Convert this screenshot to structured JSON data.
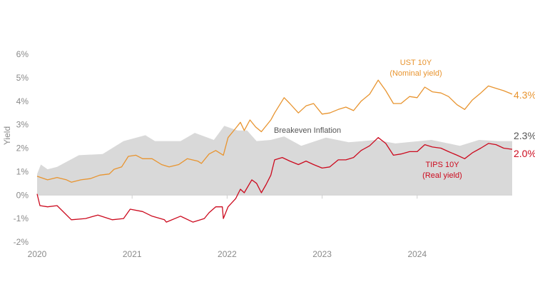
{
  "chart_data": {
    "type": "line",
    "title": "",
    "xlabel": "",
    "ylabel": "Yield",
    "xlim": [
      2020,
      2025
    ],
    "ylim": [
      -2,
      6
    ],
    "x_ticks": [
      2020,
      2021,
      2022,
      2023,
      2024
    ],
    "x_tick_labels": [
      "2020",
      "2021",
      "2022",
      "2023",
      "2024"
    ],
    "y_ticks": [
      -2,
      -1,
      0,
      1,
      2,
      3,
      4,
      5,
      6
    ],
    "y_tick_labels": [
      "-2%",
      "-1%",
      "0%",
      "1%",
      "2%",
      "3%",
      "4%",
      "5%",
      "6%"
    ],
    "grid": false,
    "colors": {
      "nominal": "#e8942f",
      "real": "#cc0a1e",
      "breakeven": "#d9d9d9",
      "breakeven_text": "#555555",
      "axis_text": "#8a8a8a"
    },
    "series": [
      {
        "name": "UST 10Y (Nominal yield)",
        "key": "nominal",
        "label_line1": "UST 10Y",
        "label_line2": "(Nominal yield)",
        "end_label": "4.3%",
        "points": [
          [
            2020.0,
            0.8
          ],
          [
            2020.11,
            0.65
          ],
          [
            2020.21,
            0.75
          ],
          [
            2020.31,
            0.65
          ],
          [
            2020.36,
            0.55
          ],
          [
            2020.46,
            0.65
          ],
          [
            2020.56,
            0.7
          ],
          [
            2020.66,
            0.85
          ],
          [
            2020.76,
            0.9
          ],
          [
            2020.81,
            1.1
          ],
          [
            2020.89,
            1.2
          ],
          [
            2020.96,
            1.65
          ],
          [
            2021.04,
            1.7
          ],
          [
            2021.11,
            1.55
          ],
          [
            2021.21,
            1.55
          ],
          [
            2021.31,
            1.3
          ],
          [
            2021.39,
            1.2
          ],
          [
            2021.49,
            1.3
          ],
          [
            2021.58,
            1.55
          ],
          [
            2021.69,
            1.45
          ],
          [
            2021.73,
            1.35
          ],
          [
            2021.81,
            1.75
          ],
          [
            2021.88,
            1.9
          ],
          [
            2021.96,
            1.7
          ],
          [
            2022.01,
            2.45
          ],
          [
            2022.09,
            2.85
          ],
          [
            2022.14,
            3.1
          ],
          [
            2022.18,
            2.75
          ],
          [
            2022.24,
            3.2
          ],
          [
            2022.3,
            2.9
          ],
          [
            2022.36,
            2.7
          ],
          [
            2022.46,
            3.2
          ],
          [
            2022.5,
            3.5
          ],
          [
            2022.6,
            4.15
          ],
          [
            2022.66,
            3.9
          ],
          [
            2022.75,
            3.5
          ],
          [
            2022.83,
            3.8
          ],
          [
            2022.91,
            3.9
          ],
          [
            2023.0,
            3.45
          ],
          [
            2023.08,
            3.5
          ],
          [
            2023.17,
            3.65
          ],
          [
            2023.25,
            3.75
          ],
          [
            2023.33,
            3.6
          ],
          [
            2023.41,
            4.0
          ],
          [
            2023.5,
            4.3
          ],
          [
            2023.59,
            4.9
          ],
          [
            2023.67,
            4.45
          ],
          [
            2023.75,
            3.9
          ],
          [
            2023.83,
            3.9
          ],
          [
            2023.92,
            4.2
          ],
          [
            2024.0,
            4.15
          ],
          [
            2024.08,
            4.6
          ],
          [
            2024.16,
            4.4
          ],
          [
            2024.25,
            4.35
          ],
          [
            2024.33,
            4.2
          ],
          [
            2024.42,
            3.85
          ],
          [
            2024.5,
            3.65
          ],
          [
            2024.58,
            4.05
          ],
          [
            2024.67,
            4.35
          ],
          [
            2024.75,
            4.65
          ],
          [
            2024.83,
            4.55
          ],
          [
            2024.91,
            4.45
          ],
          [
            2025.0,
            4.3
          ]
        ]
      },
      {
        "name": "TIPS 10Y (Real yield)",
        "key": "real",
        "label_line1": "TIPS 10Y",
        "label_line2": "(Real yield)",
        "end_label": "2.0%",
        "points": [
          [
            2020.0,
            0.05
          ],
          [
            2020.03,
            -0.45
          ],
          [
            2020.11,
            -0.5
          ],
          [
            2020.21,
            -0.45
          ],
          [
            2020.36,
            -1.05
          ],
          [
            2020.51,
            -1.0
          ],
          [
            2020.64,
            -0.85
          ],
          [
            2020.79,
            -1.05
          ],
          [
            2020.91,
            -1.0
          ],
          [
            2020.98,
            -0.6
          ],
          [
            2021.11,
            -0.7
          ],
          [
            2021.21,
            -0.9
          ],
          [
            2021.34,
            -1.05
          ],
          [
            2021.36,
            -1.15
          ],
          [
            2021.51,
            -0.9
          ],
          [
            2021.64,
            -1.15
          ],
          [
            2021.76,
            -1.0
          ],
          [
            2021.81,
            -0.75
          ],
          [
            2021.88,
            -0.5
          ],
          [
            2021.95,
            -0.5
          ],
          [
            2021.96,
            -1.0
          ],
          [
            2022.01,
            -0.5
          ],
          [
            2022.09,
            -0.15
          ],
          [
            2022.14,
            0.25
          ],
          [
            2022.18,
            0.1
          ],
          [
            2022.26,
            0.65
          ],
          [
            2022.31,
            0.5
          ],
          [
            2022.36,
            0.1
          ],
          [
            2022.41,
            0.45
          ],
          [
            2022.46,
            0.85
          ],
          [
            2022.5,
            1.5
          ],
          [
            2022.58,
            1.6
          ],
          [
            2022.66,
            1.45
          ],
          [
            2022.75,
            1.3
          ],
          [
            2022.83,
            1.45
          ],
          [
            2022.91,
            1.3
          ],
          [
            2023.0,
            1.15
          ],
          [
            2023.08,
            1.2
          ],
          [
            2023.17,
            1.5
          ],
          [
            2023.25,
            1.5
          ],
          [
            2023.33,
            1.6
          ],
          [
            2023.41,
            1.9
          ],
          [
            2023.5,
            2.1
          ],
          [
            2023.59,
            2.45
          ],
          [
            2023.67,
            2.2
          ],
          [
            2023.75,
            1.7
          ],
          [
            2023.83,
            1.75
          ],
          [
            2023.92,
            1.85
          ],
          [
            2024.0,
            1.85
          ],
          [
            2024.08,
            2.15
          ],
          [
            2024.16,
            2.05
          ],
          [
            2024.25,
            2.0
          ],
          [
            2024.33,
            1.85
          ],
          [
            2024.42,
            1.7
          ],
          [
            2024.5,
            1.55
          ],
          [
            2024.58,
            1.8
          ],
          [
            2024.67,
            2.0
          ],
          [
            2024.75,
            2.2
          ],
          [
            2024.83,
            2.15
          ],
          [
            2024.91,
            2.0
          ],
          [
            2025.0,
            1.95
          ]
        ]
      },
      {
        "name": "Breakeven Inflation",
        "key": "breakeven",
        "type": "area",
        "label_line1": "Breakeven Inflation",
        "end_label": "2.3%",
        "points": [
          [
            2020.0,
            0.9
          ],
          [
            2020.04,
            1.3
          ],
          [
            2020.11,
            1.1
          ],
          [
            2020.21,
            1.2
          ],
          [
            2020.44,
            1.7
          ],
          [
            2020.69,
            1.75
          ],
          [
            2020.91,
            2.3
          ],
          [
            2021.14,
            2.55
          ],
          [
            2021.24,
            2.3
          ],
          [
            2021.51,
            2.3
          ],
          [
            2021.66,
            2.65
          ],
          [
            2021.86,
            2.35
          ],
          [
            2021.97,
            2.95
          ],
          [
            2022.11,
            2.75
          ],
          [
            2022.21,
            2.75
          ],
          [
            2022.31,
            2.3
          ],
          [
            2022.46,
            2.35
          ],
          [
            2022.6,
            2.5
          ],
          [
            2022.78,
            2.1
          ],
          [
            2023.04,
            2.45
          ],
          [
            2023.28,
            2.25
          ],
          [
            2023.57,
            2.35
          ],
          [
            2023.77,
            2.2
          ],
          [
            2024.15,
            2.35
          ],
          [
            2024.45,
            2.1
          ],
          [
            2024.65,
            2.35
          ],
          [
            2024.85,
            2.3
          ],
          [
            2025.0,
            2.3
          ]
        ]
      }
    ]
  }
}
